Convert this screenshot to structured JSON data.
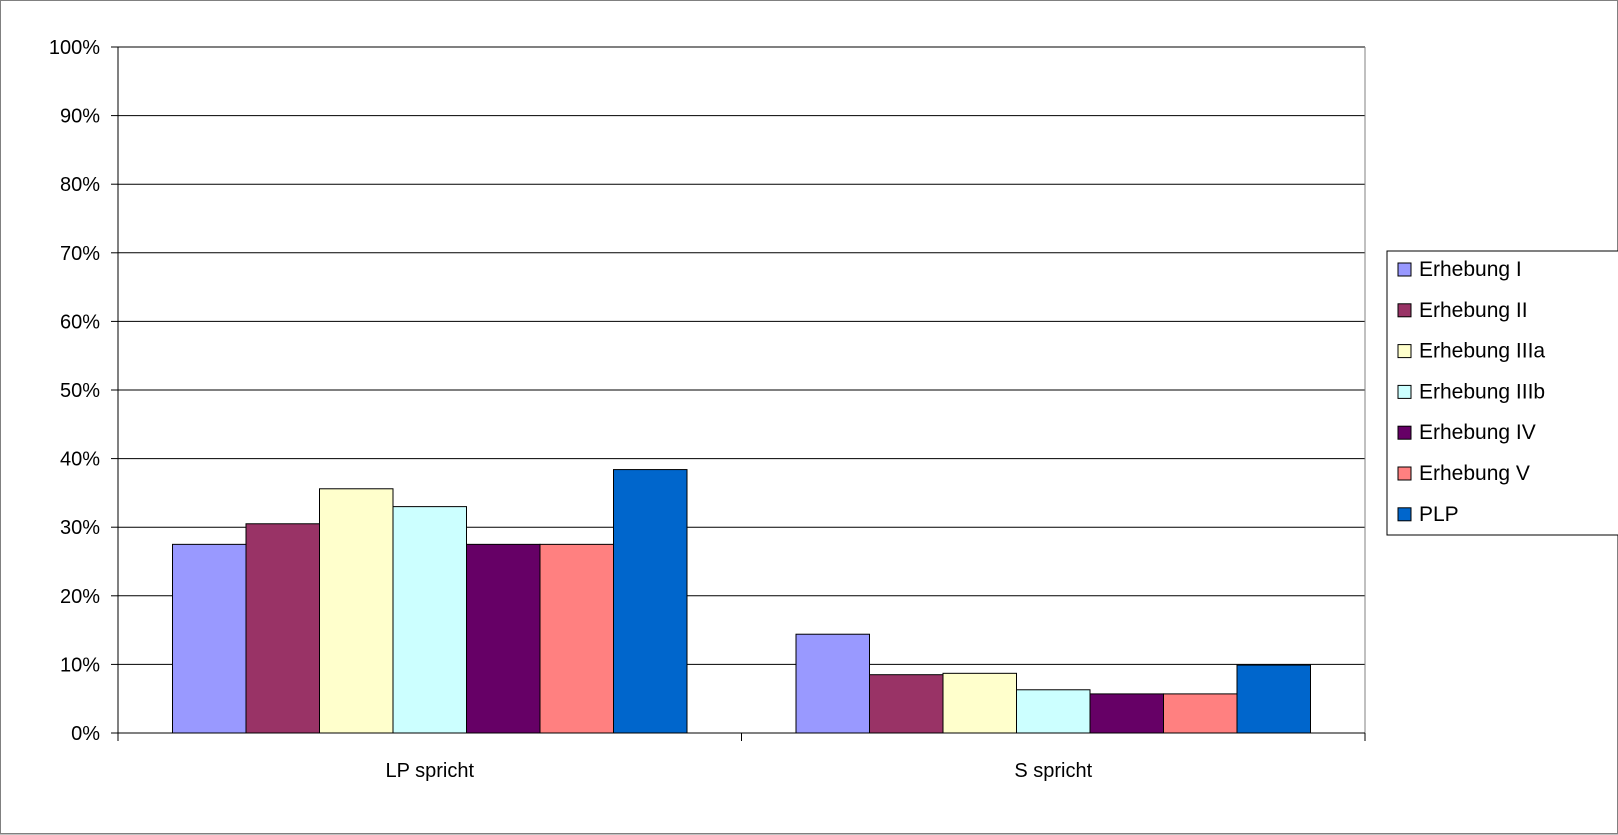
{
  "chart_data": {
    "type": "bar",
    "title": "",
    "xlabel": "",
    "ylabel": "",
    "ylim": [
      0,
      100
    ],
    "y_ticks": [
      "0%",
      "10%",
      "20%",
      "30%",
      "40%",
      "50%",
      "60%",
      "70%",
      "80%",
      "90%",
      "100%"
    ],
    "y_unit": "%",
    "grid": true,
    "legend_position": "right",
    "categories": [
      "LP spricht",
      "S spricht"
    ],
    "series": [
      {
        "name": "Erhebung I",
        "color": "#9999ff",
        "values": [
          27.5,
          14.4
        ]
      },
      {
        "name": "Erhebung II",
        "color": "#993366",
        "values": [
          30.5,
          8.5
        ]
      },
      {
        "name": "Erhebung IIIa",
        "color": "#ffffcc",
        "values": [
          35.6,
          8.7
        ]
      },
      {
        "name": "Erhebung IIIb",
        "color": "#ccffff",
        "values": [
          33.0,
          6.3
        ]
      },
      {
        "name": "Erhebung IV",
        "color": "#660066",
        "values": [
          27.5,
          5.7
        ]
      },
      {
        "name": "Erhebung V",
        "color": "#ff8080",
        "values": [
          27.5,
          5.7
        ]
      },
      {
        "name": "PLP",
        "color": "#0066cc",
        "values": [
          38.4,
          9.9
        ]
      }
    ]
  }
}
